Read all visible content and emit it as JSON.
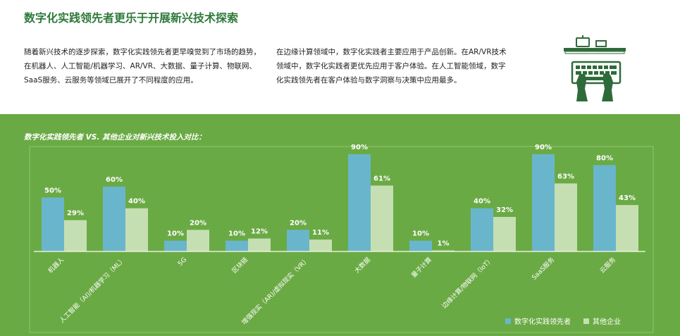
{
  "header": {
    "title": "数字化实践领先者更乐于开展新兴技术探索"
  },
  "paragraphs": {
    "left": "随着新兴技术的逐步探索，数字化实践领先者更早嗅觉到了市场的趋势，在机器人、人工智能/机器学习、AR/VR、大数据、量子计算、物联网、SaaS服务、云服务等领域已展开了不同程度的应用。",
    "right": "在边缘计算领域中，数字化实践者主要应用于产品创新。在AR/VR技术领域中，数字化实践者更优先应用于客户体验。在人工智能领域，数字化实践领先者在客户体验与数字洞察与决策中应用最多。"
  },
  "illustration": {
    "icon": "hands-on-keyboard-icon",
    "color": "#2f6b3a"
  },
  "colors": {
    "green_band": "#6aaa44",
    "leader": "#69b6cc",
    "other": "#c6dfb2",
    "title_green": "#2f7a3b"
  },
  "chart_data": {
    "type": "bar",
    "title": "数字化实践领先者 VS. 其他企业对新兴技术投入对比：",
    "categories": [
      "机器人",
      "人工智能（AI)/机器学习（ML）",
      "5G",
      "区块链",
      "增强现实（AR)/虚拟现实（VR）",
      "大数据",
      "量子计算",
      "边缘计算/物联网（IoT）",
      "SaaS服务",
      "云服务"
    ],
    "series": [
      {
        "name": "数字化实践领先者",
        "values": [
          50,
          60,
          10,
          10,
          20,
          90,
          10,
          40,
          90,
          80
        ],
        "labels": [
          "50%",
          "60%",
          "10%",
          "10%",
          "20%",
          "90%",
          "10%",
          "40%",
          "90%",
          "80%"
        ]
      },
      {
        "name": "其他企业",
        "values": [
          29,
          40,
          20,
          12,
          11,
          61,
          1,
          32,
          63,
          43
        ],
        "labels": [
          "29%",
          "40%",
          "20%",
          "12%",
          "11%",
          "61%",
          "1%",
          "32%",
          "63%",
          "43%"
        ]
      }
    ],
    "ylim": [
      0,
      100
    ],
    "grid": false,
    "legend": "bottom-right"
  }
}
